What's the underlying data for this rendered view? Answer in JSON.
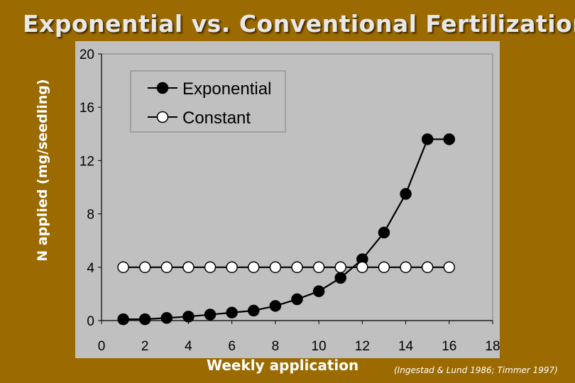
{
  "chart_data": {
    "type": "line",
    "title": "Exponential vs. Conventional Fertilization",
    "xlabel": "Weekly application",
    "ylabel": "N applied (mg/seedling)",
    "xlim": [
      0,
      18
    ],
    "ylim": [
      0,
      20
    ],
    "xticks": [
      0,
      2,
      4,
      6,
      8,
      10,
      12,
      14,
      16,
      18
    ],
    "yticks": [
      0,
      4,
      8,
      12,
      16,
      20
    ],
    "grid": false,
    "legend_position": "top-left",
    "series": [
      {
        "name": "Exponential",
        "marker": "filled-circle",
        "color": "#000000",
        "x": [
          1,
          2,
          3,
          4,
          5,
          6,
          7,
          8,
          9,
          10,
          11,
          12,
          13,
          14,
          15,
          16
        ],
        "y": [
          0.1,
          0.1,
          0.2,
          0.3,
          0.45,
          0.6,
          0.75,
          1.1,
          1.6,
          2.2,
          3.2,
          4.6,
          6.6,
          9.5,
          13.6,
          13.6
        ]
      },
      {
        "name": "Constant",
        "marker": "open-circle",
        "color": "#000000",
        "x": [
          1,
          2,
          3,
          4,
          5,
          6,
          7,
          8,
          9,
          10,
          11,
          12,
          13,
          14,
          15,
          16
        ],
        "y": [
          4,
          4,
          4,
          4,
          4,
          4,
          4,
          4,
          4,
          4,
          4,
          4,
          4,
          4,
          4,
          4
        ]
      }
    ]
  },
  "citation": "(Ingestad  & Lund 1986; Timmer 1997)",
  "colors": {
    "background": "#9B6A00",
    "plot_area": "#C0C0C0",
    "title": "#E8E8E8"
  }
}
